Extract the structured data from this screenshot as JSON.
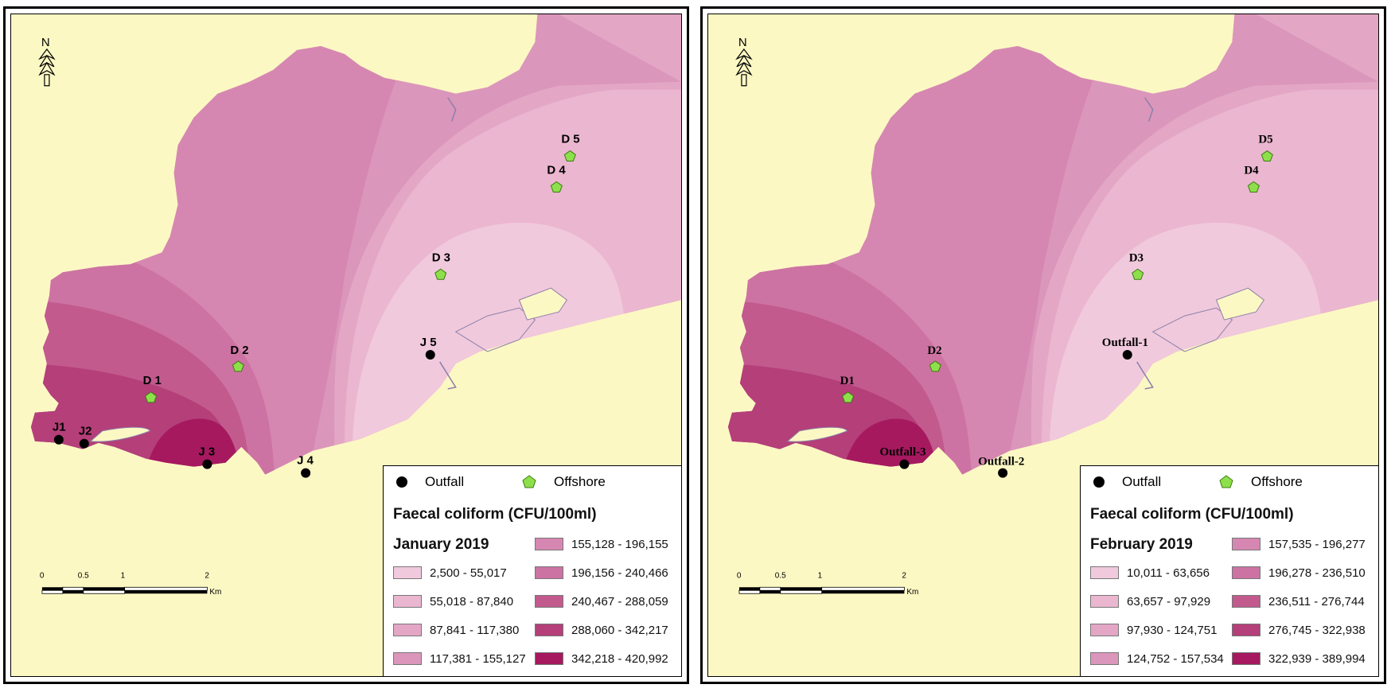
{
  "colors": {
    "land": "#fcf8c4",
    "classes": [
      "#f0c9dc",
      "#ebb6cf",
      "#e3a7c5",
      "#db96bb",
      "#d687b1",
      "#cd73a3",
      "#c25a8e",
      "#b43f79",
      "#a6195f"
    ]
  },
  "icons": {
    "north_arrow": "north-arrow-icon",
    "outfall": "black-circle",
    "offshore": "green-pentagon"
  },
  "maps": [
    {
      "month": "January 2019",
      "north_label": "N",
      "legend": {
        "outfall_label": "Outfall",
        "offshore_label": "Offshore",
        "title": "Faecal coliform (CFU/100ml)",
        "classes": [
          "2,500 - 55,017",
          "55,018 - 87,840",
          "87,841 - 117,380",
          "117,381 - 155,127",
          "155,128 - 196,155",
          "196,156 - 240,466",
          "240,467 - 288,059",
          "288,060 - 342,217",
          "342,218 - 420,992"
        ]
      },
      "scale": {
        "ticks": [
          "0",
          "0.5",
          "1",
          "2"
        ],
        "unit": "Km"
      },
      "outfalls": [
        "J1",
        "J2",
        "J 3",
        "J 4",
        "J 5"
      ],
      "offshore": [
        "D 1",
        "D 2",
        "D 3",
        "D 4",
        "D 5"
      ]
    },
    {
      "month": "February 2019",
      "north_label": "N",
      "legend": {
        "outfall_label": "Outfall",
        "offshore_label": "Offshore",
        "title": "Faecal coliform (CFU/100ml)",
        "classes": [
          "10,011 - 63,656",
          "63,657 - 97,929",
          "97,930 - 124,751",
          "124,752 - 157,534",
          "157,535 - 196,277",
          "196,278 - 236,510",
          "236,511 - 276,744",
          "276,745 - 322,938",
          "322,939 - 389,994"
        ]
      },
      "scale": {
        "ticks": [
          "0",
          "0.5",
          "1",
          "2"
        ],
        "unit": "Km"
      },
      "outfalls": [
        "Outfall-3",
        "Outfall-2",
        "Outfall-1"
      ],
      "offshore": [
        "D1",
        "D2",
        "D3",
        "D4",
        "D5"
      ]
    }
  ]
}
